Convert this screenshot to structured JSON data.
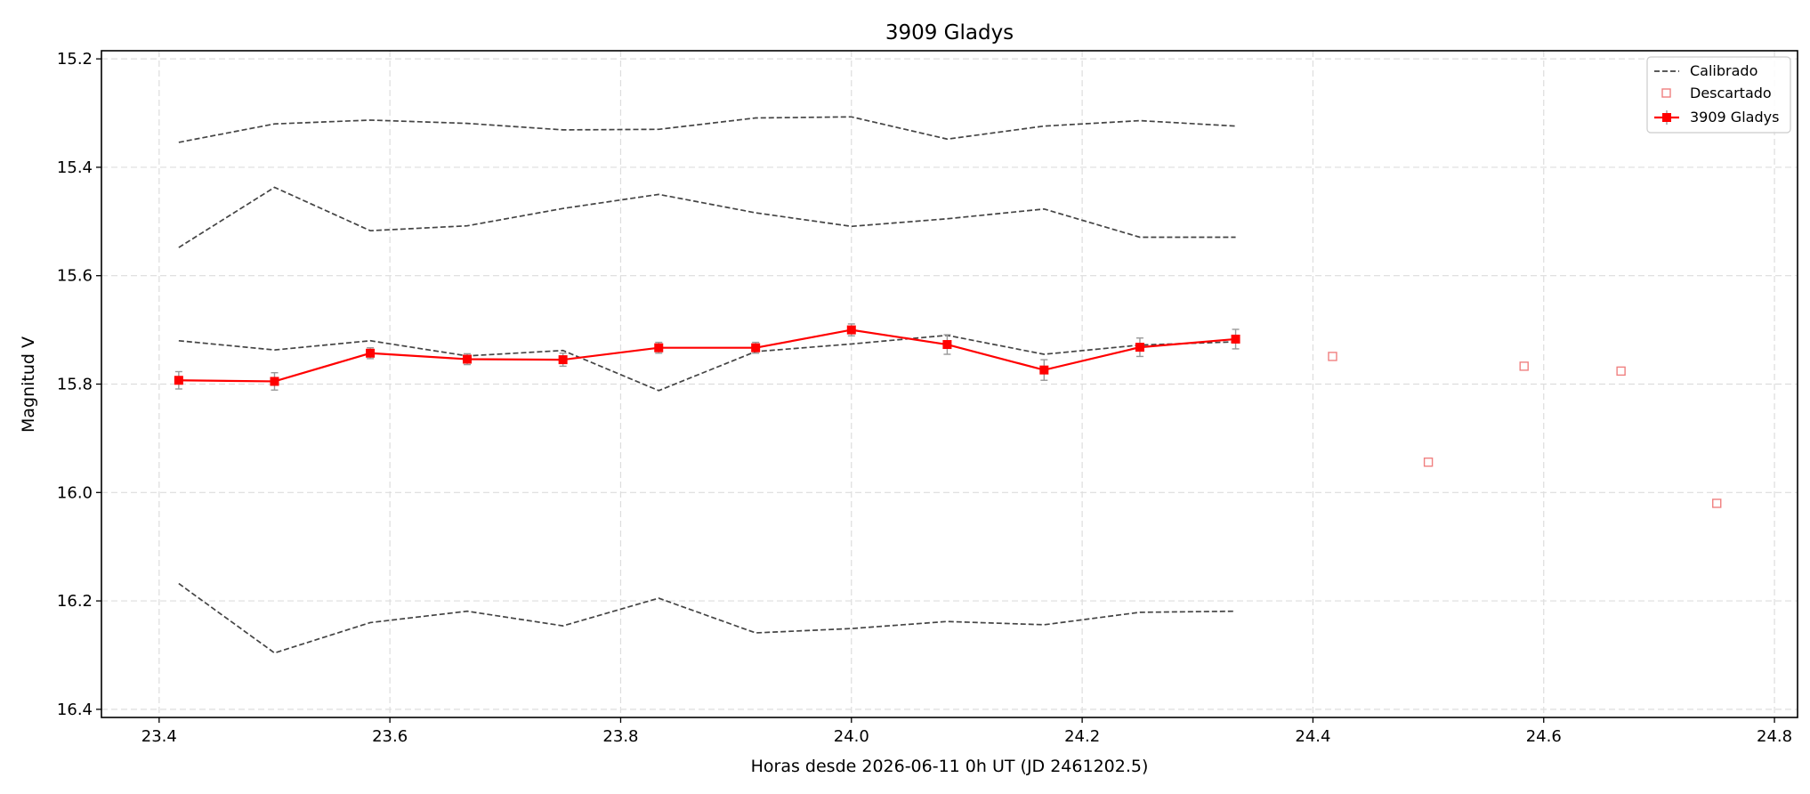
{
  "chart_data": {
    "type": "line",
    "title": "3909 Gladys",
    "xlabel": "Horas desde 2026-06-11 0h UT (JD 2461202.5)",
    "ylabel": "Magnitud V",
    "xlim": [
      23.35,
      24.82
    ],
    "ylim": [
      16.415,
      15.185
    ],
    "y_inverted": true,
    "grid": true,
    "legend_position": "top-right",
    "x_ticks": [
      23.4,
      23.6,
      23.8,
      24.0,
      24.2,
      24.4,
      24.6,
      24.8
    ],
    "x_tick_labels": [
      "23.4",
      "23.6",
      "23.8",
      "24.0",
      "24.2",
      "24.4",
      "24.6",
      "24.8"
    ],
    "y_ticks": [
      15.2,
      15.4,
      15.6,
      15.8,
      16.0,
      16.2,
      16.4
    ],
    "y_tick_labels": [
      "15.2",
      "15.4",
      "15.6",
      "15.8",
      "16.0",
      "16.2",
      "16.4"
    ],
    "x": [
      23.417,
      23.5,
      23.583,
      23.667,
      23.75,
      23.833,
      23.917,
      24.0,
      24.083,
      24.167,
      24.25,
      24.333
    ],
    "series": [
      {
        "name": "Calibrado",
        "style": "dashed",
        "color": "#444444",
        "lines": [
          [
            15.354,
            15.32,
            15.313,
            15.319,
            15.331,
            15.33,
            15.309,
            15.307,
            15.348,
            15.324,
            15.314,
            15.324
          ],
          [
            15.548,
            15.437,
            15.517,
            15.508,
            15.476,
            15.45,
            15.484,
            15.509,
            15.495,
            15.477,
            15.529,
            15.529
          ],
          [
            15.72,
            15.737,
            15.72,
            15.748,
            15.738,
            15.812,
            15.74,
            15.726,
            15.71,
            15.745,
            15.728,
            15.722
          ],
          [
            16.168,
            16.296,
            16.24,
            16.219,
            16.246,
            16.195,
            16.259,
            16.251,
            16.238,
            16.244,
            16.221,
            16.219
          ]
        ]
      },
      {
        "name": "Descartado",
        "style": "markers",
        "color": "#f08080",
        "x": [
          24.417,
          24.5,
          24.583,
          24.667,
          24.75
        ],
        "y": [
          15.749,
          15.944,
          15.767,
          15.776,
          16.02
        ]
      },
      {
        "name": "3909 Gladys",
        "style": "line-markers-errorbars",
        "color": "#ff0000",
        "values": [
          15.793,
          15.795,
          15.743,
          15.754,
          15.755,
          15.733,
          15.733,
          15.7,
          15.727,
          15.774,
          15.732,
          15.717
        ],
        "errors": [
          0.016,
          0.016,
          0.01,
          0.01,
          0.012,
          0.01,
          0.01,
          0.011,
          0.018,
          0.019,
          0.017,
          0.018
        ]
      }
    ]
  }
}
